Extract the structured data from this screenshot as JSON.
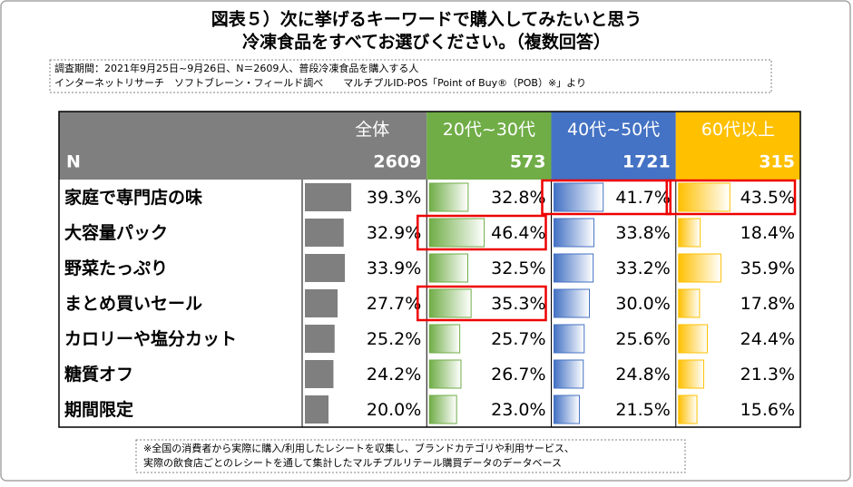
{
  "title_lines": [
    "図表５）次に挙げるキーワードで購入してみたいと思う",
    "冷凍食品をすべてお選びください。（複数回答）"
  ],
  "survey_note": [
    "調査期間：2021年9月25日~9月26日、N＝2609人、普段冷凍食品を購入する人",
    "インターネットリサーチ　ソフトブレーン・フィールド調べ　　マルチプルID-POS「Point of Buy®（POB）※」より"
  ],
  "table": {
    "n_label": "N",
    "rows": [
      "家庭で専門店の味",
      "大容量パック",
      "野菜たっぷり",
      "まとめ買いセール",
      "カロリーや塩分カット",
      "糖質オフ",
      "期間限定"
    ],
    "columns": [
      {
        "name": "全体",
        "n": 2609,
        "color": "#7f7f7f",
        "values": [
          39.3,
          32.9,
          33.9,
          27.7,
          25.2,
          24.2,
          20.0
        ],
        "value_labels": [
          "39.3%",
          "32.9%",
          "33.9%",
          "27.7%",
          "25.2%",
          "24.2%",
          "20.0%"
        ],
        "highlight": []
      },
      {
        "name": "20代~30代",
        "n": 573,
        "color": "#70ad47",
        "values": [
          32.8,
          46.4,
          32.5,
          35.3,
          25.7,
          26.7,
          23.0
        ],
        "value_labels": [
          "32.8%",
          "46.4%",
          "32.5%",
          "35.3%",
          "25.7%",
          "26.7%",
          "23.0%"
        ],
        "highlight": [
          1,
          3
        ]
      },
      {
        "name": "40代~50代",
        "n": 1721,
        "color": "#4472c4",
        "values": [
          41.7,
          33.8,
          33.2,
          30.0,
          25.6,
          24.8,
          21.5
        ],
        "value_labels": [
          "41.7%",
          "33.8%",
          "33.2%",
          "30.0%",
          "25.6%",
          "24.8%",
          "21.5%"
        ],
        "highlight": [
          0
        ]
      },
      {
        "name": "60代以上",
        "n": 315,
        "color": "#ffc000",
        "values": [
          43.5,
          18.4,
          35.9,
          17.8,
          24.4,
          21.3,
          15.6
        ],
        "value_labels": [
          "43.5%",
          "18.4%",
          "35.9%",
          "17.8%",
          "24.4%",
          "21.3%",
          "15.6%"
        ],
        "highlight": [
          0
        ]
      }
    ]
  },
  "footnote": [
    "※全国の消費者から実際に購入/利用したレシートを収集し、ブランドカテゴリや利用サービス、",
    "実際の飲食店ごとのレシートを通して集計したマルチプルリテール購買データのデータベース"
  ]
}
